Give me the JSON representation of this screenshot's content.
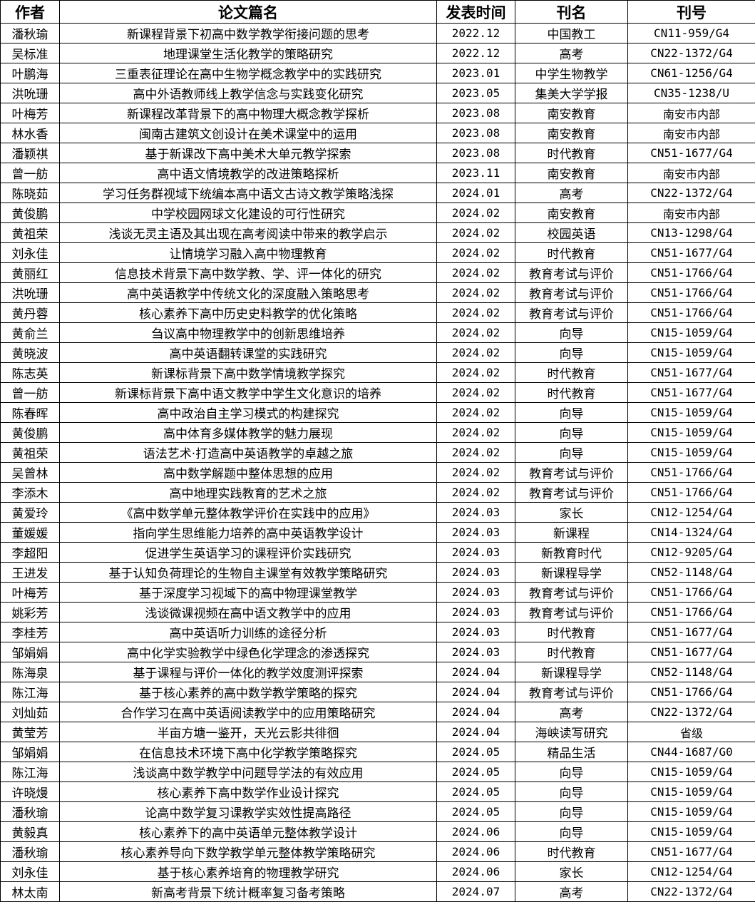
{
  "table": {
    "header": [
      "作者",
      "论文篇名",
      "发表时间",
      "刊名",
      "刊号"
    ],
    "rows": [
      [
        "潘秋瑜",
        "新课程背景下初高中数学教学衔接问题的思考",
        "2022.12",
        "中国教工",
        "CN11-959/G4"
      ],
      [
        "吴标准",
        "地理课堂生活化教学的策略研究",
        "2022.12",
        "高考",
        "CN22-1372/G4"
      ],
      [
        "叶鹏海",
        "三重表征理论在高中生物学概念教学中的实践研究",
        "2023.01",
        "中学生物教学",
        "CN61-1256/G4"
      ],
      [
        "洪吮珊",
        "高中外语教师线上教学信念与实践变化研究",
        "2023.05",
        "集美大学学报",
        "CN35-1238/U"
      ],
      [
        "叶梅芳",
        "新课程改革背景下的高中物理大概念教学探析",
        "2023.08",
        "南安教育",
        "南安市内部"
      ],
      [
        "林水香",
        "闽南古建筑文创设计在美术课堂中的运用",
        "2023.08",
        "南安教育",
        "南安市内部"
      ],
      [
        "潘颖祺",
        "基于新课改下高中美术大单元教学探索",
        "2023.08",
        "时代教育",
        "CN51-1677/G4"
      ],
      [
        "曾一舫",
        "高中语文情境教学的改进策略探析",
        "2023.11",
        "南安教育",
        "南安市内部"
      ],
      [
        "陈晓茹",
        "学习任务群视域下统编本高中语文古诗文教学策略浅探",
        "2024.01",
        "高考",
        "CN22-1372/G4"
      ],
      [
        "黄俊鹏",
        "中学校园网球文化建设的可行性研究",
        "2024.02",
        "南安教育",
        "南安市内部"
      ],
      [
        "黄祖荣",
        "浅谈无灵主语及其出现在高考阅读中带来的教学启示",
        "2024.02",
        "校园英语",
        "CN13-1298/G4"
      ],
      [
        "刘永佳",
        "让情境学习融入高中物理教育",
        "2024.02",
        "时代教育",
        "CN51-1677/G4"
      ],
      [
        "黄丽红",
        "信息技术背景下高中数学教、学、评一体化的研究",
        "2024.02",
        "教育考试与评价",
        "CN51-1766/G4"
      ],
      [
        "洪吮珊",
        "高中英语教学中传统文化的深度融入策略思考",
        "2024.02",
        "教育考试与评价",
        "CN51-1766/G4"
      ],
      [
        "黄丹蓉",
        "核心素养下高中历史史料教学的优化策略",
        "2024.02",
        "教育考试与评价",
        "CN51-1766/G4"
      ],
      [
        "黄俞兰",
        "刍议高中物理教学中的创新思维培养",
        "2024.02",
        "向导",
        "CN15-1059/G4"
      ],
      [
        "黄晓波",
        "高中英语翻转课堂的实践研究",
        "2024.02",
        "向导",
        "CN15-1059/G4"
      ],
      [
        "陈志英",
        "新课标背景下高中数学情境教学探究",
        "2024.02",
        "时代教育",
        "CN51-1677/G4"
      ],
      [
        "曾一舫",
        "新课标背景下高中语文教学中学生文化意识的培养",
        "2024.02",
        "时代教育",
        "CN51-1677/G4"
      ],
      [
        "陈春晖",
        "高中政治自主学习模式的构建探究",
        "2024.02",
        "向导",
        "CN15-1059/G4"
      ],
      [
        "黄俊鹏",
        "高中体育多媒体教学的魅力展现",
        "2024.02",
        "向导",
        "CN15-1059/G4"
      ],
      [
        "黄祖荣",
        "语法艺术·打造高中英语教学的卓越之旅",
        "2024.02",
        "向导",
        "CN15-1059/G4"
      ],
      [
        "吴曾林",
        "高中数学解题中整体思想的应用",
        "2024.02",
        "教育考试与评价",
        "CN51-1766/G4"
      ],
      [
        "李添木",
        "高中地理实践教育的艺术之旅",
        "2024.02",
        "教育考试与评价",
        "CN51-1766/G4"
      ],
      [
        "黄爱玲",
        "《高中数学单元整体教学评价在实践中的应用》",
        "2024.03",
        "家长",
        "CN12-1254/G4"
      ],
      [
        "董媛媛",
        "指向学生思维能力培养的高中英语教学设计",
        "2024.03",
        "新课程",
        "CN14-1324/G4"
      ],
      [
        "李超阳",
        "促进学生英语学习的课程评价实践研究",
        "2024.03",
        "新教育时代",
        "CN12-9205/G4"
      ],
      [
        "王进发",
        "基于认知负荷理论的生物自主课堂有效教学策略研究",
        "2024.03",
        "新课程导学",
        "CN52-1148/G4"
      ],
      [
        "叶梅芳",
        "基于深度学习视域下的高中物理课堂教学",
        "2024.03",
        "教育考试与评价",
        "CN51-1766/G4"
      ],
      [
        "姚彩芳",
        "浅谈微课视频在高中语文教学中的应用",
        "2024.03",
        "教育考试与评价",
        "CN51-1766/G4"
      ],
      [
        "李桂芳",
        "高中英语听力训练的途径分析",
        "2024.03",
        "时代教育",
        "CN51-1677/G4"
      ],
      [
        "邹娟娟",
        "高中化学实验教学中绿色化学理念的渗透探究",
        "2024.03",
        "时代教育",
        "CN51-1677/G4"
      ],
      [
        "陈海泉",
        "基于课程与评价一体化的教学效度测评探索",
        "2024.04",
        "新课程导学",
        "CN52-1148/G4"
      ],
      [
        "陈江海",
        "基于核心素养的高中数学教学策略的探究",
        "2024.04",
        "教育考试与评价",
        "CN51-1766/G4"
      ],
      [
        "刘灿茹",
        "合作学习在高中英语阅读教学中的应用策略研究",
        "2024.04",
        "高考",
        "CN22-1372/G4"
      ],
      [
        "黄莹芳",
        "半亩方塘一鉴开，天光云影共徘徊",
        "2024.04",
        "海峡读写研究",
        "省级"
      ],
      [
        "邹娟娟",
        "在信息技术环境下高中化学教学策略探究",
        "2024.05",
        "精品生活",
        "CN44-1687/G0"
      ],
      [
        "陈江海",
        "浅谈高中数学教学中问题导学法的有效应用",
        "2024.05",
        "向导",
        "CN15-1059/G4"
      ],
      [
        "许晓熳",
        "核心素养下高中数学作业设计探究",
        "2024.05",
        "向导",
        "CN15-1059/G4"
      ],
      [
        "潘秋瑜",
        "论高中数学复习课教学实效性提高路径",
        "2024.05",
        "向导",
        "CN15-1059/G4"
      ],
      [
        "黄毅真",
        "核心素养下的高中英语单元整体教学设计",
        "2024.06",
        "向导",
        "CN15-1059/G4"
      ],
      [
        "潘秋瑜",
        "核心素养导向下数学教学单元整体教学策略研究",
        "2024.06",
        "时代教育",
        "CN51-1677/G4"
      ],
      [
        "刘永佳",
        "基于核心素养培育的物理教学研究",
        "2024.06",
        "家长",
        "CN12-1254/G4"
      ],
      [
        "林太南",
        "新高考背景下统计概率复习备考策略",
        "2024.07",
        "高考",
        "CN22-1372/G4"
      ]
    ]
  }
}
